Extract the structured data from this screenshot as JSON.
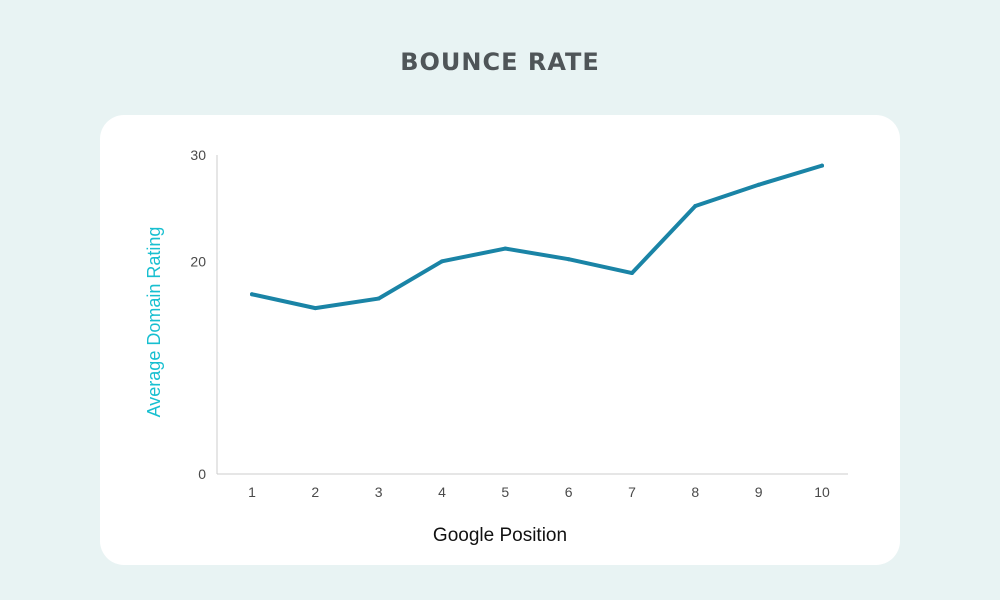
{
  "chart_data": {
    "type": "line",
    "title": "BOUNCE RATE",
    "xlabel": "Google Position",
    "ylabel": "Average Domain Rating",
    "x": [
      1,
      2,
      3,
      4,
      5,
      6,
      7,
      8,
      9,
      10
    ],
    "values": [
      16.9,
      15.6,
      16.5,
      20.0,
      21.2,
      20.2,
      18.9,
      25.2,
      27.2,
      29.0
    ],
    "yticks": [
      0,
      20,
      30
    ],
    "ylim": [
      0,
      30
    ],
    "grid": false,
    "colors": {
      "line": "#1a84a6",
      "ylabel": "#17bfd0",
      "axis": "#cccccc"
    }
  }
}
